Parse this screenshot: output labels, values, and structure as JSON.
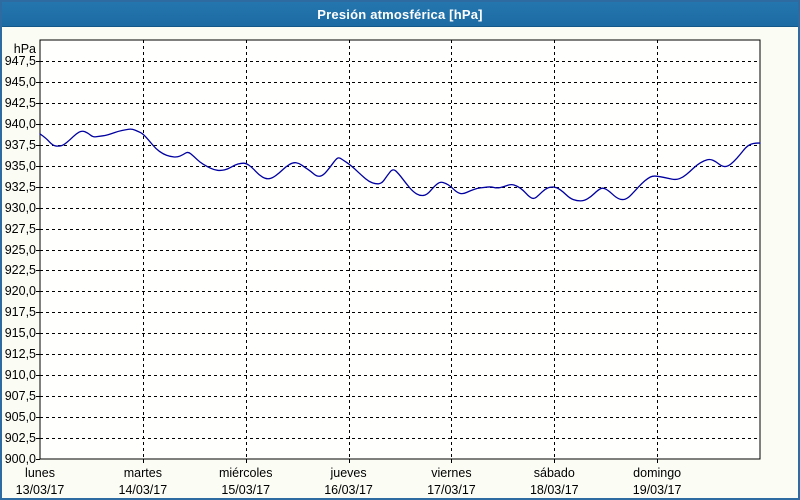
{
  "window": {
    "title": "Presión atmosférica [hPa]"
  },
  "colors": {
    "titlebar_bg": "#1e6ba3",
    "titlebar_text": "#ffffff",
    "outer_border": "#2e6ba1",
    "page_bg": "#fbfdf5",
    "plot_bg": "#fffffe",
    "grid": "#000000",
    "tick_text": "#000000",
    "line": "#0000a0"
  },
  "chart_data": {
    "type": "line",
    "title": "Presión atmosférica [hPa]",
    "unit_label": "hPa",
    "ylim": [
      900,
      950
    ],
    "ytick_step": 2.5,
    "grid": "dashed",
    "legend": "none",
    "ytick_labels": [
      "947,5",
      "945,0",
      "942,5",
      "940,0",
      "937,5",
      "935,0",
      "932,5",
      "930,0",
      "927,5",
      "925,0",
      "922,5",
      "920,0",
      "917,5",
      "915,0",
      "912,5",
      "910,0",
      "907,5",
      "905,0",
      "902,5",
      "900,0"
    ],
    "x_categories": [
      {
        "day": "lunes",
        "date": "13/03/17"
      },
      {
        "day": "martes",
        "date": "14/03/17"
      },
      {
        "day": "miércoles",
        "date": "15/03/17"
      },
      {
        "day": "jueves",
        "date": "16/03/17"
      },
      {
        "day": "viernes",
        "date": "17/03/17"
      },
      {
        "day": "sábado",
        "date": "18/03/17"
      },
      {
        "day": "domingo",
        "date": "19/03/17"
      }
    ],
    "xlim_days": [
      0,
      7
    ],
    "series": [
      {
        "points": [
          [
            0.0,
            938.8
          ],
          [
            0.058,
            938.3
          ],
          [
            0.117,
            937.5
          ],
          [
            0.165,
            937.3
          ],
          [
            0.224,
            937.4
          ],
          [
            0.292,
            938.1
          ],
          [
            0.35,
            938.8
          ],
          [
            0.408,
            939.2
          ],
          [
            0.467,
            938.9
          ],
          [
            0.515,
            938.4
          ],
          [
            0.574,
            938.5
          ],
          [
            0.632,
            938.6
          ],
          [
            0.69,
            938.8
          ],
          [
            0.758,
            939.1
          ],
          [
            0.836,
            939.3
          ],
          [
            0.894,
            939.4
          ],
          [
            0.953,
            939.1
          ],
          [
            1.001,
            938.8
          ],
          [
            1.06,
            938.0
          ],
          [
            1.128,
            937.0
          ],
          [
            1.196,
            936.4
          ],
          [
            1.264,
            936.1
          ],
          [
            1.332,
            936.0
          ],
          [
            1.39,
            936.3
          ],
          [
            1.439,
            936.7
          ],
          [
            1.497,
            936.1
          ],
          [
            1.556,
            935.4
          ],
          [
            1.624,
            934.9
          ],
          [
            1.692,
            934.5
          ],
          [
            1.76,
            934.4
          ],
          [
            1.828,
            934.6
          ],
          [
            1.896,
            935.1
          ],
          [
            1.954,
            935.3
          ],
          [
            2.003,
            935.3
          ],
          [
            2.061,
            934.8
          ],
          [
            2.129,
            933.9
          ],
          [
            2.197,
            933.4
          ],
          [
            2.256,
            933.5
          ],
          [
            2.324,
            934.1
          ],
          [
            2.392,
            934.9
          ],
          [
            2.46,
            935.4
          ],
          [
            2.518,
            935.3
          ],
          [
            2.576,
            934.8
          ],
          [
            2.635,
            934.3
          ],
          [
            2.693,
            933.7
          ],
          [
            2.751,
            933.8
          ],
          [
            2.819,
            934.8
          ],
          [
            2.878,
            935.8
          ],
          [
            2.907,
            936.0
          ],
          [
            2.955,
            935.6
          ],
          [
            3.004,
            935.2
          ],
          [
            3.062,
            934.6
          ],
          [
            3.131,
            933.8
          ],
          [
            3.199,
            933.1
          ],
          [
            3.267,
            932.8
          ],
          [
            3.325,
            932.9
          ],
          [
            3.374,
            933.8
          ],
          [
            3.432,
            934.7
          ],
          [
            3.49,
            934.0
          ],
          [
            3.558,
            932.9
          ],
          [
            3.626,
            931.9
          ],
          [
            3.694,
            931.4
          ],
          [
            3.762,
            931.5
          ],
          [
            3.83,
            932.5
          ],
          [
            3.889,
            933.1
          ],
          [
            3.947,
            932.9
          ],
          [
            3.996,
            932.5
          ],
          [
            4.054,
            931.8
          ],
          [
            4.112,
            931.6
          ],
          [
            4.18,
            932.0
          ],
          [
            4.248,
            932.3
          ],
          [
            4.316,
            932.4
          ],
          [
            4.384,
            932.5
          ],
          [
            4.443,
            932.3
          ],
          [
            4.511,
            932.5
          ],
          [
            4.579,
            932.8
          ],
          [
            4.637,
            932.6
          ],
          [
            4.696,
            932.1
          ],
          [
            4.754,
            931.3
          ],
          [
            4.802,
            931.0
          ],
          [
            4.851,
            931.5
          ],
          [
            4.909,
            932.2
          ],
          [
            4.967,
            932.5
          ],
          [
            5.026,
            932.4
          ],
          [
            5.084,
            931.9
          ],
          [
            5.152,
            931.1
          ],
          [
            5.22,
            930.8
          ],
          [
            5.288,
            930.8
          ],
          [
            5.357,
            931.3
          ],
          [
            5.425,
            932.1
          ],
          [
            5.473,
            932.4
          ],
          [
            5.531,
            932.0
          ],
          [
            5.6,
            931.2
          ],
          [
            5.658,
            930.9
          ],
          [
            5.716,
            931.1
          ],
          [
            5.784,
            932.0
          ],
          [
            5.852,
            932.9
          ],
          [
            5.91,
            933.5
          ],
          [
            5.959,
            933.8
          ],
          [
            6.027,
            933.7
          ],
          [
            6.105,
            933.5
          ],
          [
            6.182,
            933.3
          ],
          [
            6.25,
            933.6
          ],
          [
            6.318,
            934.3
          ],
          [
            6.386,
            935.1
          ],
          [
            6.455,
            935.6
          ],
          [
            6.513,
            935.8
          ],
          [
            6.571,
            935.5
          ],
          [
            6.63,
            934.9
          ],
          [
            6.688,
            934.9
          ],
          [
            6.746,
            935.5
          ],
          [
            6.805,
            936.3
          ],
          [
            6.863,
            937.2
          ],
          [
            6.911,
            937.6
          ],
          [
            6.96,
            937.7
          ],
          [
            7.0,
            937.7
          ]
        ]
      }
    ]
  }
}
